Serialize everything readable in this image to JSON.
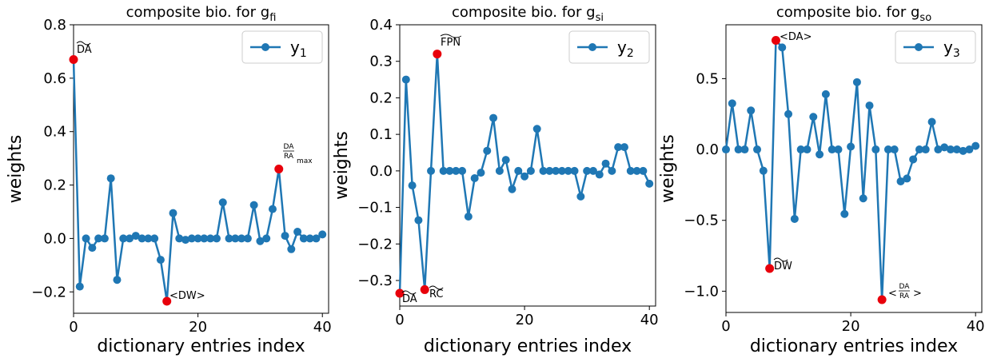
{
  "chart_data": [
    {
      "type": "line",
      "title": "composite bio. for g",
      "title_sub": "fi",
      "xlabel": "dictionary entries index",
      "ylabel": "weights",
      "xlim": [
        0,
        41
      ],
      "ylim": [
        -0.28,
        0.8
      ],
      "xticks": [
        0,
        20,
        40
      ],
      "yticks": [
        -0.2,
        0.0,
        0.2,
        0.4,
        0.6,
        0.8
      ],
      "ytick_labels": [
        "−0.2",
        "0.0",
        "0.2",
        "0.4",
        "0.6",
        "0.8"
      ],
      "legend": "top-right",
      "series": [
        {
          "name": "y",
          "name_sub": "1",
          "color": "#1f77b4",
          "x": [
            0,
            1,
            2,
            3,
            4,
            5,
            6,
            7,
            8,
            9,
            10,
            11,
            12,
            13,
            14,
            15,
            16,
            17,
            18,
            19,
            20,
            21,
            22,
            23,
            24,
            25,
            26,
            27,
            28,
            29,
            30,
            31,
            32,
            33,
            34,
            35,
            36,
            37,
            38,
            39,
            40
          ],
          "y": [
            0.67,
            -0.18,
            0.0,
            -0.035,
            0.0,
            0.0,
            0.225,
            -0.155,
            0.0,
            0.0,
            0.01,
            0.0,
            0.0,
            0.0,
            -0.08,
            -0.235,
            0.095,
            0.0,
            -0.005,
            0.0,
            0.0,
            0.0,
            0.0,
            0.0,
            0.135,
            0.0,
            0.0,
            0.0,
            0.0,
            0.125,
            -0.01,
            0.0,
            0.11,
            0.26,
            0.01,
            -0.04,
            0.025,
            0.0,
            0.0,
            0.0,
            0.015
          ]
        }
      ],
      "highlights": [
        {
          "x": 0,
          "y": 0.67,
          "label": "DA",
          "tilde": true,
          "color": "#e8000b"
        },
        {
          "x": 15,
          "y": -0.235,
          "label": "<DW>",
          "color": "#e8000b"
        },
        {
          "x": 33,
          "y": 0.26,
          "label": "DA/RA max",
          "color": "#e8000b"
        }
      ],
      "frac_label": {
        "num": "DA",
        "den": "RA",
        "suffix": "max"
      }
    },
    {
      "type": "line",
      "title": "composite bio. for g",
      "title_sub": "si",
      "xlabel": "dictionary entries index",
      "ylabel": "weights",
      "xlim": [
        0,
        41
      ],
      "ylim": [
        -0.37,
        0.4
      ],
      "xticks": [
        0,
        20,
        40
      ],
      "yticks": [
        -0.3,
        -0.2,
        -0.1,
        0.0,
        0.1,
        0.2,
        0.3,
        0.4
      ],
      "ytick_labels": [
        "−0.3",
        "−0.2",
        "−0.1",
        "0.0",
        "0.1",
        "0.2",
        "0.3",
        "0.4"
      ],
      "legend": "top-right",
      "series": [
        {
          "name": "y",
          "name_sub": "2",
          "color": "#1f77b4",
          "x": [
            0,
            1,
            2,
            3,
            4,
            5,
            6,
            7,
            8,
            9,
            10,
            11,
            12,
            13,
            14,
            15,
            16,
            17,
            18,
            19,
            20,
            21,
            22,
            23,
            24,
            25,
            26,
            27,
            28,
            29,
            30,
            31,
            32,
            33,
            34,
            35,
            36,
            37,
            38,
            39,
            40
          ],
          "y": [
            -0.335,
            0.25,
            -0.04,
            -0.135,
            -0.325,
            0.0,
            0.32,
            0.0,
            0.0,
            0.0,
            0.0,
            -0.125,
            -0.02,
            -0.005,
            0.055,
            0.145,
            0.0,
            0.03,
            -0.05,
            0.0,
            -0.015,
            0.0,
            0.115,
            0.0,
            0.0,
            0.0,
            0.0,
            0.0,
            0.0,
            -0.07,
            0.0,
            0.0,
            -0.01,
            0.02,
            0.0,
            0.065,
            0.065,
            0.0,
            0.0,
            0.0,
            -0.035
          ]
        }
      ],
      "highlights": [
        {
          "x": 0,
          "y": -0.335,
          "label": "DA",
          "tilde": true,
          "color": "#e8000b"
        },
        {
          "x": 4,
          "y": -0.325,
          "label": "RC",
          "tilde": true,
          "color": "#e8000b"
        },
        {
          "x": 6,
          "y": 0.32,
          "label": "FPN",
          "tilde": true,
          "color": "#e8000b"
        }
      ]
    },
    {
      "type": "line",
      "title": "composite bio. for g",
      "title_sub": "so",
      "xlabel": "dictionary entries index",
      "ylabel": "weights",
      "xlim": [
        0,
        41
      ],
      "ylim": [
        -1.15,
        0.88
      ],
      "xticks": [
        0,
        20,
        40
      ],
      "yticks": [
        -1.0,
        -0.5,
        0.0,
        0.5
      ],
      "ytick_labels": [
        "−1.0",
        "−0.5",
        "0.0",
        "0.5"
      ],
      "legend": "top-right",
      "series": [
        {
          "name": "y",
          "name_sub": "3",
          "color": "#1f77b4",
          "x": [
            0,
            1,
            2,
            3,
            4,
            5,
            6,
            7,
            8,
            9,
            10,
            11,
            12,
            13,
            14,
            15,
            16,
            17,
            18,
            19,
            20,
            21,
            22,
            23,
            24,
            25,
            26,
            27,
            28,
            29,
            30,
            31,
            32,
            33,
            34,
            35,
            36,
            37,
            38,
            39,
            40
          ],
          "y": [
            0.0,
            0.325,
            0.0,
            0.0,
            0.275,
            0.0,
            -0.15,
            -0.84,
            0.77,
            0.72,
            0.25,
            -0.49,
            0.0,
            0.0,
            0.23,
            -0.035,
            0.39,
            0.0,
            0.0,
            -0.455,
            0.02,
            0.475,
            -0.345,
            0.31,
            0.0,
            -1.06,
            0.0,
            0.0,
            -0.225,
            -0.205,
            -0.07,
            0.0,
            0.0,
            0.195,
            0.0,
            0.015,
            0.0,
            0.0,
            -0.01,
            0.0,
            0.025
          ]
        }
      ],
      "highlights": [
        {
          "x": 7,
          "y": -0.84,
          "label": "DW",
          "tilde": true,
          "color": "#e8000b"
        },
        {
          "x": 8,
          "y": 0.77,
          "label": "<DA>",
          "color": "#e8000b"
        },
        {
          "x": 25,
          "y": -1.06,
          "label": "<DA/RA>",
          "color": "#e8000b"
        }
      ],
      "frac_label": {
        "num": "DA",
        "den": "RA"
      }
    }
  ]
}
